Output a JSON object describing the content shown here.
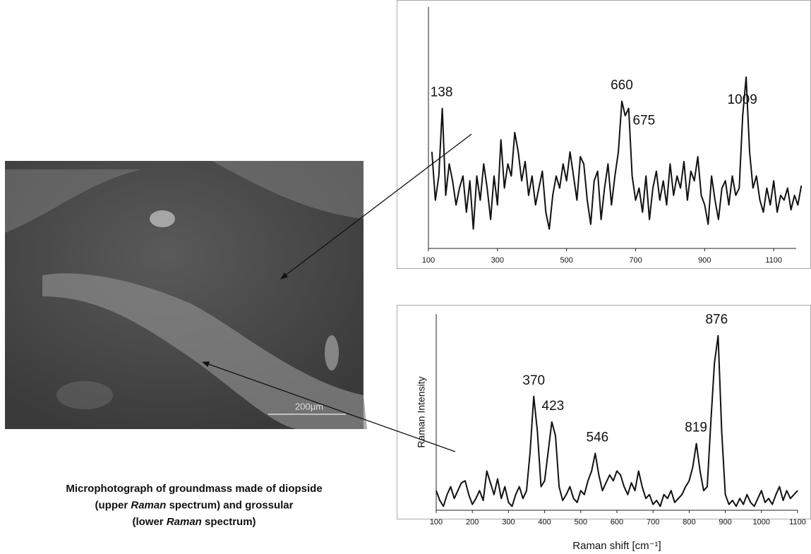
{
  "image": {
    "scale_label": "200µm"
  },
  "caption": [
    [
      {
        "text": "Microphotograph of groundmass made of diopside"
      }
    ],
    [
      {
        "text": "(upper "
      },
      {
        "text": "Raman",
        "italic": true
      },
      {
        "text": " spectrum) and grossular"
      }
    ],
    [
      {
        "text": "(lower "
      },
      {
        "text": "Raman",
        "italic": true
      },
      {
        "text": " spectrum)"
      }
    ]
  ],
  "chart_data": [
    {
      "type": "line",
      "color": "#111111",
      "x": [
        110,
        120,
        130,
        140,
        150,
        160,
        170,
        180,
        190,
        200,
        210,
        220,
        230,
        240,
        250,
        260,
        270,
        280,
        290,
        300,
        310,
        320,
        330,
        340,
        350,
        360,
        370,
        380,
        390,
        400,
        410,
        420,
        430,
        440,
        450,
        460,
        470,
        480,
        490,
        500,
        510,
        520,
        530,
        540,
        550,
        560,
        570,
        580,
        590,
        600,
        610,
        620,
        630,
        640,
        650,
        660,
        670,
        680,
        690,
        700,
        710,
        720,
        730,
        740,
        750,
        760,
        770,
        780,
        790,
        800,
        810,
        820,
        830,
        840,
        850,
        860,
        870,
        880,
        890,
        900,
        910,
        920,
        930,
        940,
        950,
        960,
        970,
        980,
        990,
        1000,
        1010,
        1020,
        1030,
        1040,
        1050,
        1060,
        1070,
        1080,
        1090,
        1100,
        1110,
        1120,
        1130,
        1140,
        1150,
        1160,
        1170,
        1180
      ],
      "values": [
        40,
        20,
        30,
        58,
        22,
        35,
        28,
        18,
        25,
        30,
        15,
        28,
        8,
        30,
        20,
        35,
        25,
        12,
        30,
        18,
        45,
        25,
        35,
        30,
        48,
        40,
        28,
        36,
        22,
        30,
        18,
        25,
        32,
        15,
        8,
        22,
        30,
        25,
        35,
        28,
        40,
        30,
        20,
        38,
        35,
        20,
        10,
        28,
        32,
        12,
        25,
        35,
        18,
        30,
        40,
        61,
        55,
        58,
        30,
        20,
        25,
        15,
        30,
        12,
        25,
        32,
        20,
        28,
        18,
        35,
        22,
        30,
        25,
        36,
        20,
        32,
        28,
        38,
        22,
        18,
        10,
        30,
        20,
        12,
        25,
        28,
        18,
        30,
        22,
        25,
        55,
        71,
        40,
        25,
        30,
        20,
        15,
        25,
        18,
        28,
        15,
        22,
        20,
        25,
        16,
        22,
        18,
        26
      ],
      "peaks": [
        138,
        660,
        675,
        1009
      ],
      "xlim": [
        100,
        1165
      ],
      "ylim": [
        0,
        100
      ],
      "xticks": [
        100,
        300,
        500,
        700,
        900,
        1100
      ]
    },
    {
      "type": "line",
      "color": "#111111",
      "ylabel": "Raman Intensity",
      "xlabel": "Raman shift [cm⁻¹]",
      "x": [
        100,
        110,
        120,
        130,
        140,
        150,
        160,
        170,
        180,
        190,
        200,
        210,
        220,
        230,
        240,
        250,
        260,
        270,
        280,
        290,
        300,
        310,
        320,
        330,
        340,
        350,
        360,
        370,
        380,
        390,
        400,
        410,
        420,
        430,
        440,
        450,
        460,
        470,
        480,
        490,
        500,
        510,
        520,
        530,
        540,
        550,
        560,
        570,
        580,
        590,
        600,
        610,
        620,
        630,
        640,
        650,
        660,
        670,
        680,
        690,
        700,
        710,
        720,
        730,
        740,
        750,
        760,
        770,
        780,
        790,
        800,
        810,
        820,
        830,
        840,
        850,
        860,
        870,
        880,
        890,
        900,
        910,
        920,
        930,
        940,
        950,
        960,
        970,
        980,
        990,
        1000,
        1010,
        1020,
        1030,
        1040,
        1050,
        1060,
        1070,
        1080,
        1090,
        1100
      ],
      "values": [
        10,
        5,
        2,
        8,
        12,
        6,
        10,
        14,
        15,
        8,
        3,
        6,
        10,
        5,
        20,
        14,
        8,
        16,
        6,
        12,
        4,
        2,
        8,
        12,
        6,
        10,
        30,
        58,
        40,
        12,
        15,
        30,
        45,
        38,
        12,
        5,
        8,
        12,
        6,
        4,
        10,
        8,
        15,
        20,
        29,
        18,
        10,
        14,
        18,
        15,
        20,
        18,
        12,
        8,
        14,
        10,
        20,
        12,
        6,
        8,
        3,
        5,
        2,
        8,
        6,
        10,
        4,
        6,
        8,
        12,
        15,
        22,
        34,
        20,
        10,
        12,
        45,
        75,
        89,
        40,
        8,
        3,
        5,
        2,
        6,
        3,
        8,
        4,
        2,
        6,
        10,
        4,
        6,
        3,
        8,
        12,
        5,
        10,
        6,
        8,
        10
      ],
      "peaks": [
        370,
        423,
        546,
        819,
        876
      ],
      "xlim": [
        100,
        1100
      ],
      "ylim": [
        0,
        100
      ],
      "xticks": [
        100,
        200,
        300,
        400,
        500,
        600,
        700,
        800,
        900,
        1000,
        1100
      ]
    }
  ]
}
